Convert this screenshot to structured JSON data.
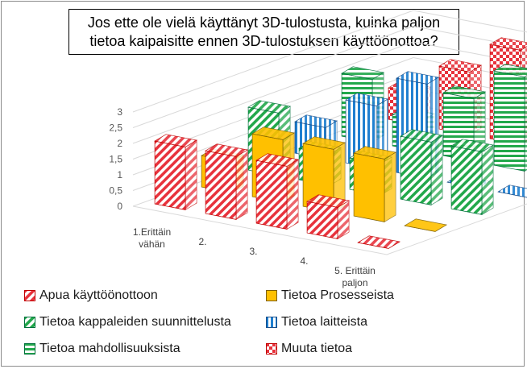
{
  "chart_data": {
    "type": "bar",
    "title_lines": [
      "Jos ette ole vielä käyttänyt 3D-tulostusta, kuinka paljon",
      "tietoa kaipaisitte ennen 3D-tulostuksen käyttöönottoa?"
    ],
    "categories": [
      "1.Erittäin vähän",
      "2.",
      "3.",
      "4.",
      "5. Erittäin paljon"
    ],
    "category_label_lines": [
      [
        "1.Erittäin",
        "vähän"
      ],
      [
        "2."
      ],
      [
        "3."
      ],
      [
        "4."
      ],
      [
        "5. Erittäin",
        "paljon"
      ]
    ],
    "y_ticks": [
      "0",
      "0,5",
      "1",
      "1,5",
      "2",
      "2,5",
      "3"
    ],
    "ylim": [
      0,
      3
    ],
    "grid": true,
    "legend_position": "bottom",
    "series": [
      {
        "name": "Apua käyttöönottoon",
        "values": [
          2,
          2,
          2,
          1,
          0
        ],
        "color": "#e8323c",
        "pattern": "diag-red"
      },
      {
        "name": "Tietoa Prosesseista",
        "values": [
          1,
          2,
          2,
          2,
          0
        ],
        "color": "#ffc000",
        "pattern": "solid-yellow"
      },
      {
        "name": "Tietoa kappaleiden suunnittelusta",
        "values": [
          2,
          1,
          1,
          2,
          2
        ],
        "color": "#22a84b",
        "pattern": "diag-green"
      },
      {
        "name": "Tietoa laitteista",
        "values": [
          1,
          2,
          3,
          0,
          0
        ],
        "color": "#1f7fd0",
        "pattern": "vert-blue"
      },
      {
        "name": "Tietoa mahdollisuuksista",
        "values": [
          2,
          1,
          2,
          3,
          3
        ],
        "color": "#22a84b",
        "pattern": "horiz-green"
      },
      {
        "name": "Muuta tietoa",
        "values": [
          1,
          2,
          3,
          0,
          2
        ],
        "color": "#e8323c",
        "pattern": "check-red"
      }
    ]
  }
}
